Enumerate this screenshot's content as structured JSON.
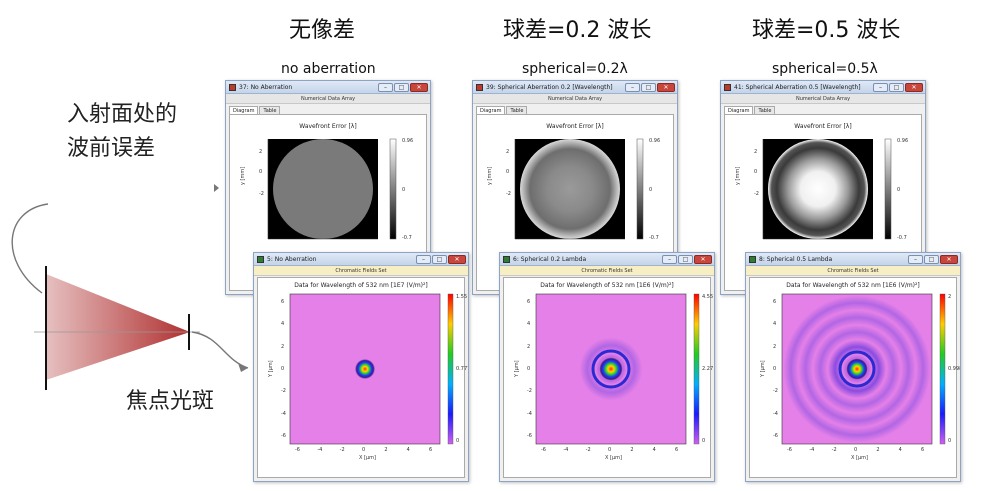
{
  "headings": {
    "col1": "无像差",
    "col2": "球差=0.2 波长",
    "col3": "球差=0.5 波长"
  },
  "subheadings": {
    "col1": "no aberration",
    "col2": "spherical=0.2λ",
    "col3": "spherical=0.5λ"
  },
  "side_labels": {
    "entrance_line1": "入射面处的",
    "entrance_line2": "波前误差",
    "focal_spot": "焦点光斑"
  },
  "wavefront_windows": [
    {
      "title": "37: No Aberration",
      "subtitle": "Numerical Data Array",
      "tabs": [
        "Diagram",
        "Table"
      ],
      "plot_title": "Wavefront Error [λ]",
      "ylabel": "y [mm]",
      "yticks": [
        "2",
        "0",
        "-2"
      ],
      "colorbar_max": "0.96",
      "colorbar_mid": "0",
      "colorbar_min": "-0.7",
      "pattern": "flat"
    },
    {
      "title": "39: Spherical Aberration 0.2 [Wavelength]",
      "subtitle": "Numerical Data Array",
      "tabs": [
        "Diagram",
        "Table"
      ],
      "plot_title": "Wavefront Error [λ]",
      "ylabel": "y [mm]",
      "yticks": [
        "2",
        "0",
        "-2"
      ],
      "colorbar_max": "0.96",
      "colorbar_mid": "0",
      "colorbar_min": "-0.7",
      "pattern": "sph02"
    },
    {
      "title": "41: Spherical Aberration 0.5 [Wavelength]",
      "subtitle": "Numerical Data Array",
      "tabs": [
        "Diagram",
        "Table"
      ],
      "plot_title": "Wavefront Error [λ]",
      "ylabel": "y [mm]",
      "yticks": [
        "2",
        "0",
        "-2"
      ],
      "colorbar_max": "0.96",
      "colorbar_mid": "0",
      "colorbar_min": "-0.7",
      "pattern": "sph05"
    }
  ],
  "field_windows": [
    {
      "title": "5: No Aberration",
      "subtitle": "Chromatic Fields Set",
      "plot_title": "Data for Wavelength of 532 nm  [1E7 (V/m)²]",
      "xlabel": "X [µm]",
      "ylabel": "Y [µm]",
      "xticks": [
        "-6",
        "-4",
        "-2",
        "0",
        "2",
        "4",
        "6"
      ],
      "yticks": [
        "6",
        "4",
        "2",
        "0",
        "-2",
        "-4",
        "-6"
      ],
      "colorbar_max": "1.55",
      "colorbar_mid": "0.777",
      "colorbar_min": "0",
      "rings": 0
    },
    {
      "title": "6: Spherical 0.2 Lambda",
      "subtitle": "Chromatic Fields Set",
      "plot_title": "Data for Wavelength of 532 nm  [1E6 (V/m)²]",
      "xlabel": "X [µm]",
      "ylabel": "Y [µm]",
      "xticks": [
        "-6",
        "-4",
        "-2",
        "0",
        "2",
        "4",
        "6"
      ],
      "yticks": [
        "6",
        "4",
        "2",
        "0",
        "-2",
        "-4",
        "-6"
      ],
      "colorbar_max": "4.55",
      "colorbar_mid": "2.27",
      "colorbar_min": "0",
      "rings": 2
    },
    {
      "title": "8: Spherical 0.5 Lambda",
      "subtitle": "Chromatic Fields Set",
      "plot_title": "Data for Wavelength of 532 nm  [1E6 (V/m)²]",
      "xlabel": "X [µm]",
      "ylabel": "Y [µm]",
      "xticks": [
        "-6",
        "-4",
        "-2",
        "0",
        "2",
        "4",
        "6"
      ],
      "yticks": [
        "6",
        "4",
        "2",
        "0",
        "-2",
        "-4",
        "-6"
      ],
      "colorbar_max": "2",
      "colorbar_mid": "0.998",
      "colorbar_min": "0",
      "rings": 5
    }
  ],
  "colors": {
    "cone_base": "#b03030",
    "field_background": "#e580e8"
  }
}
